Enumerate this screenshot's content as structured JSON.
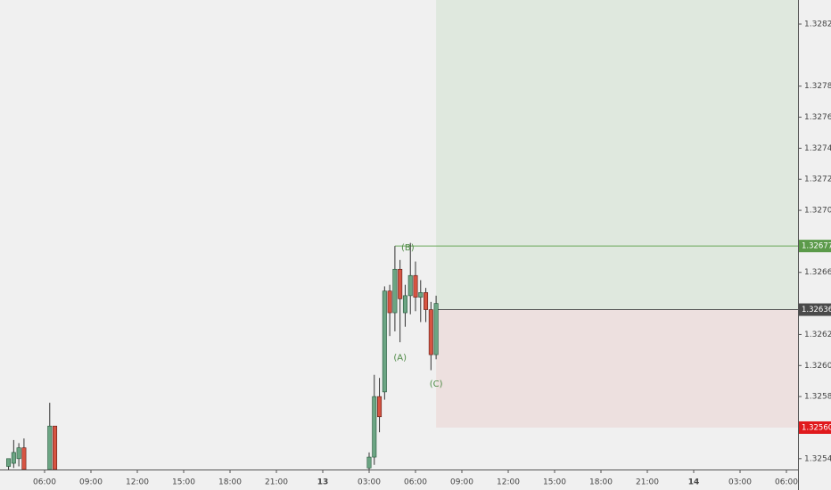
{
  "chart_data": {
    "type": "candlestick",
    "up_color": "#6ba583",
    "down_color": "#d75442",
    "xlim": [
      3.115,
      54.75
    ],
    "ylim": [
      1.32533,
      1.328355
    ],
    "xticks": [
      {
        "value": 6,
        "label": "06:00"
      },
      {
        "value": 9,
        "label": "09:00"
      },
      {
        "value": 12,
        "label": "12:00"
      },
      {
        "value": 15,
        "label": "15:00"
      },
      {
        "value": 18,
        "label": "18:00"
      },
      {
        "value": 21,
        "label": "21:00"
      },
      {
        "value": 24,
        "label": "13"
      },
      {
        "value": 27,
        "label": "03:00"
      },
      {
        "value": 30,
        "label": "06:00"
      },
      {
        "value": 33,
        "label": "09:00"
      },
      {
        "value": 36,
        "label": "12:00"
      },
      {
        "value": 39,
        "label": "15:00"
      },
      {
        "value": 42,
        "label": "18:00"
      },
      {
        "value": 45,
        "label": "21:00"
      },
      {
        "value": 48,
        "label": "14"
      },
      {
        "value": 51,
        "label": "03:00"
      },
      {
        "value": 54,
        "label": "06:00"
      }
    ],
    "yticks": [
      {
        "value": 1.3254,
        "label": "1.32540"
      },
      {
        "value": 1.3258,
        "label": "1.32580"
      },
      {
        "value": 1.326,
        "label": "1.32600"
      },
      {
        "value": 1.3262,
        "label": "1.32620"
      },
      {
        "value": 1.3266,
        "label": "1.32660"
      },
      {
        "value": 1.327,
        "label": "1.32700"
      },
      {
        "value": 1.3272,
        "label": "1.32720"
      },
      {
        "value": 1.3274,
        "label": "1.32740"
      },
      {
        "value": 1.3276,
        "label": "1.32760"
      },
      {
        "value": 1.3278,
        "label": "1.32780"
      },
      {
        "value": 1.3282,
        "label": "1.32820"
      }
    ],
    "x": [
      3.667,
      4.0,
      4.333,
      4.667,
      6.333,
      6.667,
      27.0,
      27.333,
      27.667,
      28.0,
      28.333,
      28.667,
      29.0,
      29.333,
      29.667,
      30.0,
      30.333,
      30.667,
      31.0,
      31.333
    ],
    "open": [
      1.32535,
      1.32537,
      1.3254,
      1.32547,
      1.32533,
      1.32561,
      1.32534,
      1.32541,
      1.3258,
      1.32583,
      1.32648,
      1.32634,
      1.32662,
      1.32634,
      1.32645,
      1.32658,
      1.32644,
      1.32647,
      1.32636,
      1.32607
    ],
    "high": [
      1.3254,
      1.32552,
      1.3255,
      1.32553,
      1.32576,
      1.32561,
      1.32544,
      1.32594,
      1.32592,
      1.32651,
      1.32652,
      1.32677,
      1.32668,
      1.32652,
      1.32679,
      1.32667,
      1.32655,
      1.3265,
      1.32641,
      1.32645
    ],
    "low": [
      1.32533,
      1.32534,
      1.32535,
      1.32533,
      1.32533,
      1.32533,
      1.32533,
      1.32536,
      1.32557,
      1.32578,
      1.32619,
      1.32622,
      1.32615,
      1.32625,
      1.32633,
      1.32635,
      1.32628,
      1.32628,
      1.32597,
      1.32604
    ],
    "close": [
      1.3254,
      1.32544,
      1.32547,
      1.32533,
      1.32561,
      1.32533,
      1.32541,
      1.3258,
      1.32567,
      1.32648,
      1.32634,
      1.32662,
      1.32643,
      1.32645,
      1.32658,
      1.32644,
      1.32647,
      1.32636,
      1.32607,
      1.3264
    ],
    "position": {
      "start": 31.333,
      "entry": 1.32636,
      "stop": {
        "value": 1.3256,
        "label": "1.32560"
      }
    },
    "level": {
      "start": 28.667,
      "value": 1.32677
    },
    "annotations": [
      {
        "text": "(A)",
        "x": 29.0,
        "y": 1.32605
      },
      {
        "text": "(B)",
        "x": 29.5,
        "y": 1.32676
      },
      {
        "text": "(C)",
        "x": 31.333,
        "y": 1.32588
      }
    ]
  }
}
